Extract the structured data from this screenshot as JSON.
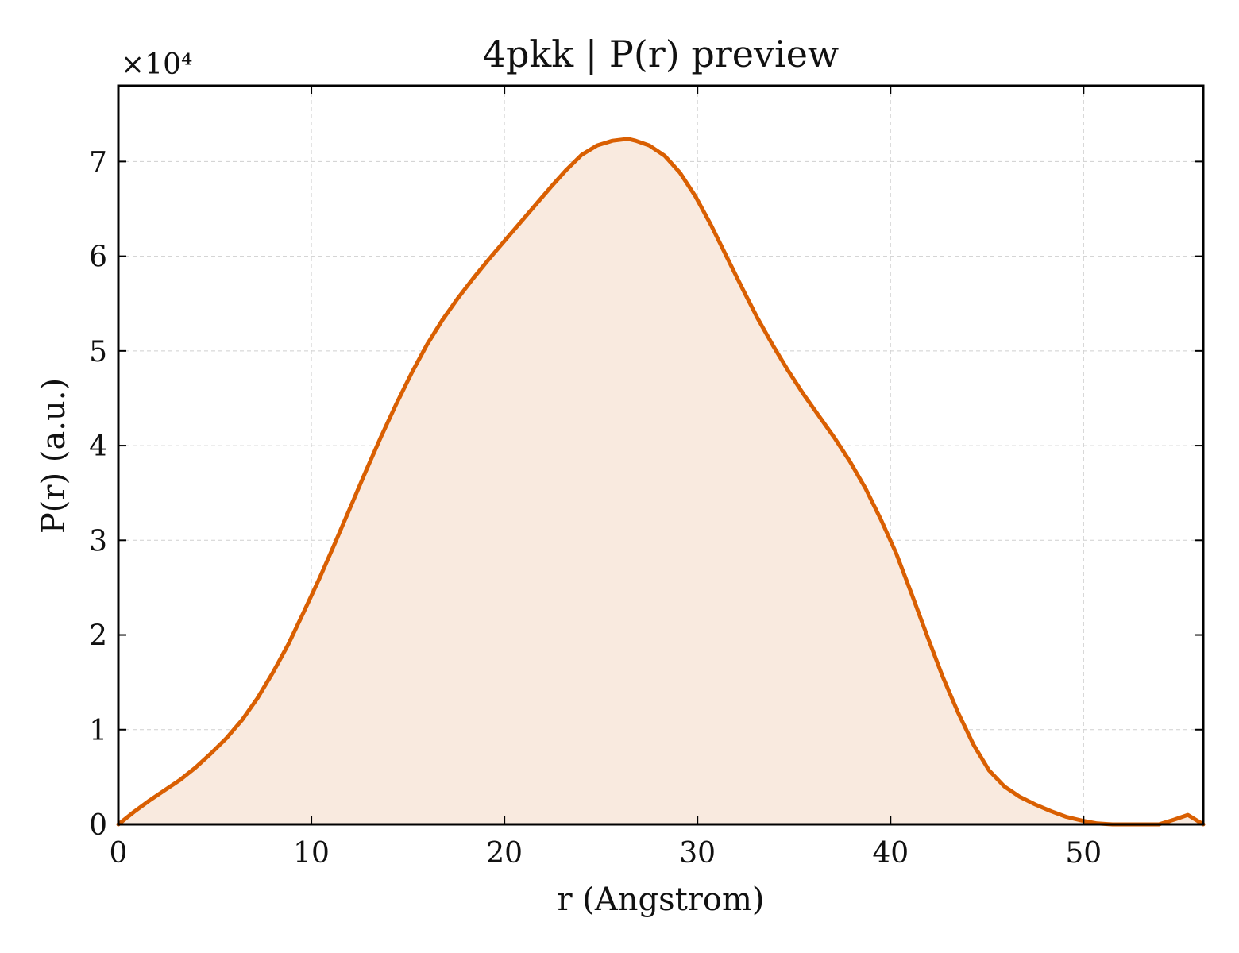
{
  "chart_data": {
    "type": "area",
    "title": "4pkk | P(r) preview",
    "xlabel": "r (Angstrom)",
    "ylabel": "P(r) (a.u.)",
    "y_multiplier_label": "×10⁴",
    "xlim": [
      0,
      56.2
    ],
    "ylim": [
      0,
      7.8
    ],
    "xticks": [
      0,
      10,
      20,
      30,
      40,
      50
    ],
    "xtick_labels": [
      "0",
      "10",
      "20",
      "30",
      "40",
      "50"
    ],
    "yticks": [
      0,
      1,
      2,
      3,
      4,
      5,
      6,
      7
    ],
    "ytick_labels": [
      "0",
      "1",
      "2",
      "3",
      "4",
      "5",
      "6",
      "7"
    ],
    "grid": true,
    "line_color": "#d95f02",
    "fill_color": "#f9eadf",
    "series": [
      {
        "x": [
          0,
          0.8,
          1.6,
          2.4,
          3.2,
          4.0,
          4.8,
          5.6,
          6.4,
          7.2,
          8.0,
          8.8,
          9.6,
          10.4,
          11.2,
          12.0,
          12.8,
          13.6,
          14.4,
          15.2,
          16.0,
          16.8,
          17.6,
          18.4,
          19.2,
          20.0,
          20.8,
          21.6,
          22.4,
          23.2,
          24.0,
          24.8,
          25.6,
          26.4,
          26.8,
          27.5,
          28.3,
          29.1,
          29.9,
          30.7,
          31.5,
          32.3,
          33.1,
          33.9,
          34.7,
          35.5,
          36.3,
          37.1,
          37.9,
          38.7,
          39.5,
          40.3,
          41.1,
          41.9,
          42.7,
          43.5,
          44.3,
          45.1,
          45.9,
          46.7,
          47.5,
          48.3,
          49.1,
          49.9,
          50.7,
          51.5,
          52.3,
          53.1,
          53.9,
          54.7,
          55.4,
          56.2
        ],
        "y": [
          0.0,
          0.13,
          0.25,
          0.36,
          0.47,
          0.6,
          0.75,
          0.91,
          1.1,
          1.33,
          1.6,
          1.9,
          2.24,
          2.59,
          2.96,
          3.34,
          3.72,
          4.09,
          4.44,
          4.77,
          5.07,
          5.33,
          5.56,
          5.77,
          5.97,
          6.16,
          6.35,
          6.54,
          6.73,
          6.91,
          7.07,
          7.17,
          7.22,
          7.24,
          7.22,
          7.17,
          7.06,
          6.88,
          6.63,
          6.33,
          6.0,
          5.67,
          5.35,
          5.06,
          4.79,
          4.54,
          4.31,
          4.08,
          3.83,
          3.55,
          3.22,
          2.86,
          2.43,
          1.99,
          1.56,
          1.18,
          0.84,
          0.57,
          0.4,
          0.29,
          0.21,
          0.14,
          0.08,
          0.04,
          0.01,
          0.0,
          0.0,
          0.0,
          0.0,
          0.05,
          0.1,
          0.0
        ]
      }
    ]
  }
}
